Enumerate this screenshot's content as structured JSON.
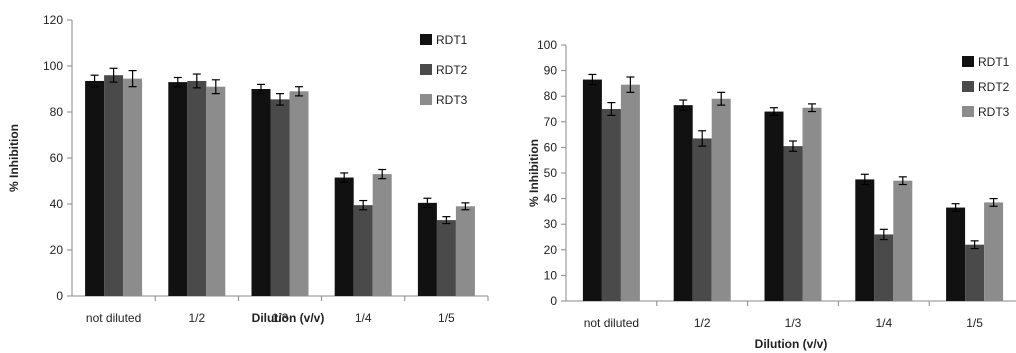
{
  "chart_data": [
    {
      "type": "bar",
      "categories": [
        "not diluted",
        "1/2",
        "1/3",
        "1/4",
        "1/5"
      ],
      "xlabel": "Dilution (v/v)",
      "ylabel": "% Inhibition",
      "ylim": [
        0,
        120
      ],
      "yticks": [
        0,
        20,
        40,
        60,
        80,
        100,
        120
      ],
      "grid": false,
      "legend_position": "right",
      "series": [
        {
          "name": "RDT1",
          "color": "#111111",
          "values": [
            93.5,
            93.0,
            90.0,
            51.5,
            40.5
          ],
          "errors": [
            2.5,
            2.0,
            2.0,
            2.0,
            2.0
          ]
        },
        {
          "name": "RDT2",
          "color": "#4a4a4a",
          "values": [
            96.0,
            93.5,
            85.5,
            39.5,
            33.0
          ],
          "errors": [
            3.0,
            3.0,
            2.5,
            2.0,
            1.5
          ]
        },
        {
          "name": "RDT3",
          "color": "#8c8c8c",
          "values": [
            94.5,
            91.0,
            89.0,
            53.0,
            39.0
          ],
          "errors": [
            3.5,
            3.0,
            2.0,
            2.0,
            1.5
          ]
        }
      ]
    },
    {
      "type": "bar",
      "categories": [
        "not diluted",
        "1/2",
        "1/3",
        "1/4",
        "1/5"
      ],
      "xlabel": "Dilution (v/v)",
      "ylabel": "% Inhibition",
      "ylim": [
        0,
        100
      ],
      "yticks": [
        0,
        10,
        20,
        30,
        40,
        50,
        60,
        70,
        80,
        90,
        100
      ],
      "grid": false,
      "legend_position": "right",
      "series": [
        {
          "name": "RDT1",
          "color": "#111111",
          "values": [
            86.5,
            76.5,
            74.0,
            47.5,
            36.5
          ],
          "errors": [
            2.0,
            2.0,
            1.5,
            2.0,
            1.5
          ]
        },
        {
          "name": "RDT2",
          "color": "#4a4a4a",
          "values": [
            75.0,
            63.5,
            60.5,
            26.0,
            22.0
          ],
          "errors": [
            2.5,
            3.0,
            2.0,
            2.0,
            1.5
          ]
        },
        {
          "name": "RDT3",
          "color": "#8c8c8c",
          "values": [
            84.5,
            79.0,
            75.5,
            47.0,
            38.5
          ],
          "errors": [
            3.0,
            2.5,
            1.5,
            1.5,
            1.5
          ]
        }
      ]
    }
  ]
}
